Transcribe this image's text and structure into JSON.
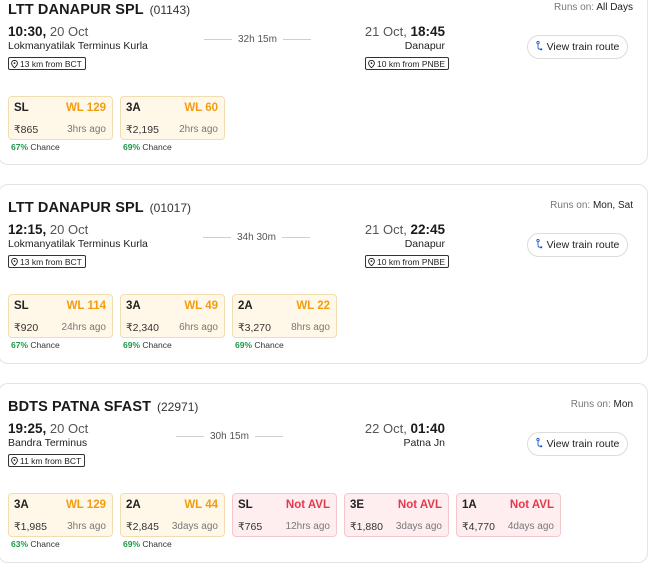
{
  "trains": [
    {
      "name": "LTT DANAPUR SPL",
      "number": "(01143)",
      "runs_on_label": "Runs on:",
      "runs_on": "All Days",
      "dep_time": "10:30,",
      "dep_date": "20 Oct",
      "dep_station": "Lokmanyatilak Terminus Kurla",
      "duration": "32h 15m",
      "arr_date": "21 Oct,",
      "arr_time": "18:45",
      "arr_station": "Danapur",
      "dep_distance": "13 km from BCT",
      "arr_distance": "10 km from PNBE",
      "route_label": "View train route",
      "classes": [
        {
          "name": "SL",
          "availability": "WL 129",
          "price": "₹865",
          "updated": "3hrs ago",
          "chance": "67%",
          "chance_label": "Chance",
          "status": "wl"
        },
        {
          "name": "3A",
          "availability": "WL 60",
          "price": "₹2,195",
          "updated": "2hrs ago",
          "chance": "69%",
          "chance_label": "Chance",
          "status": "wl"
        }
      ]
    },
    {
      "name": "LTT DANAPUR SPL",
      "number": "(01017)",
      "runs_on_label": "Runs on:",
      "runs_on": "Mon, Sat",
      "dep_time": "12:15,",
      "dep_date": "20 Oct",
      "dep_station": "Lokmanyatilak Terminus Kurla",
      "duration": "34h 30m",
      "arr_date": "21 Oct,",
      "arr_time": "22:45",
      "arr_station": "Danapur",
      "dep_distance": "13 km from BCT",
      "arr_distance": "10 km from PNBE",
      "route_label": "View train route",
      "classes": [
        {
          "name": "SL",
          "availability": "WL 114",
          "price": "₹920",
          "updated": "24hrs ago",
          "chance": "67%",
          "chance_label": "Chance",
          "status": "wl"
        },
        {
          "name": "3A",
          "availability": "WL 49",
          "price": "₹2,340",
          "updated": "6hrs ago",
          "chance": "69%",
          "chance_label": "Chance",
          "status": "wl"
        },
        {
          "name": "2A",
          "availability": "WL 22",
          "price": "₹3,270",
          "updated": "8hrs ago",
          "chance": "69%",
          "chance_label": "Chance",
          "status": "wl"
        }
      ]
    },
    {
      "name": "BDTS PATNA SFAST",
      "number": "(22971)",
      "runs_on_label": "Runs on:",
      "runs_on": "Mon",
      "dep_time": "19:25,",
      "dep_date": "20 Oct",
      "dep_station": "Bandra Terminus",
      "duration": "30h 15m",
      "arr_date": "22 Oct,",
      "arr_time": "01:40",
      "arr_station": "Patna Jn",
      "dep_distance": "11 km from BCT",
      "arr_distance": "",
      "route_label": "View train route",
      "classes": [
        {
          "name": "3A",
          "availability": "WL 129",
          "price": "₹1,985",
          "updated": "3hrs ago",
          "chance": "63%",
          "chance_label": "Chance",
          "status": "wl"
        },
        {
          "name": "2A",
          "availability": "WL 44",
          "price": "₹2,845",
          "updated": "3days ago",
          "chance": "69%",
          "chance_label": "Chance",
          "status": "wl"
        },
        {
          "name": "SL",
          "availability": "Not AVL",
          "price": "₹765",
          "updated": "12hrs ago",
          "chance": "",
          "chance_label": "",
          "status": "na"
        },
        {
          "name": "3E",
          "availability": "Not AVL",
          "price": "₹1,880",
          "updated": "3days ago",
          "chance": "",
          "chance_label": "",
          "status": "na"
        },
        {
          "name": "1A",
          "availability": "Not AVL",
          "price": "₹4,770",
          "updated": "4days ago",
          "chance": "",
          "chance_label": "",
          "status": "na"
        }
      ]
    }
  ],
  "icons": {
    "pin": "location-pin-icon",
    "route": "route-icon"
  },
  "colors": {
    "waitlist": "#f39c12",
    "not_available": "#e03b4d",
    "chance": "#1a9a4a",
    "wl_bg": "#fff8e8",
    "na_bg": "#ffeef0"
  }
}
